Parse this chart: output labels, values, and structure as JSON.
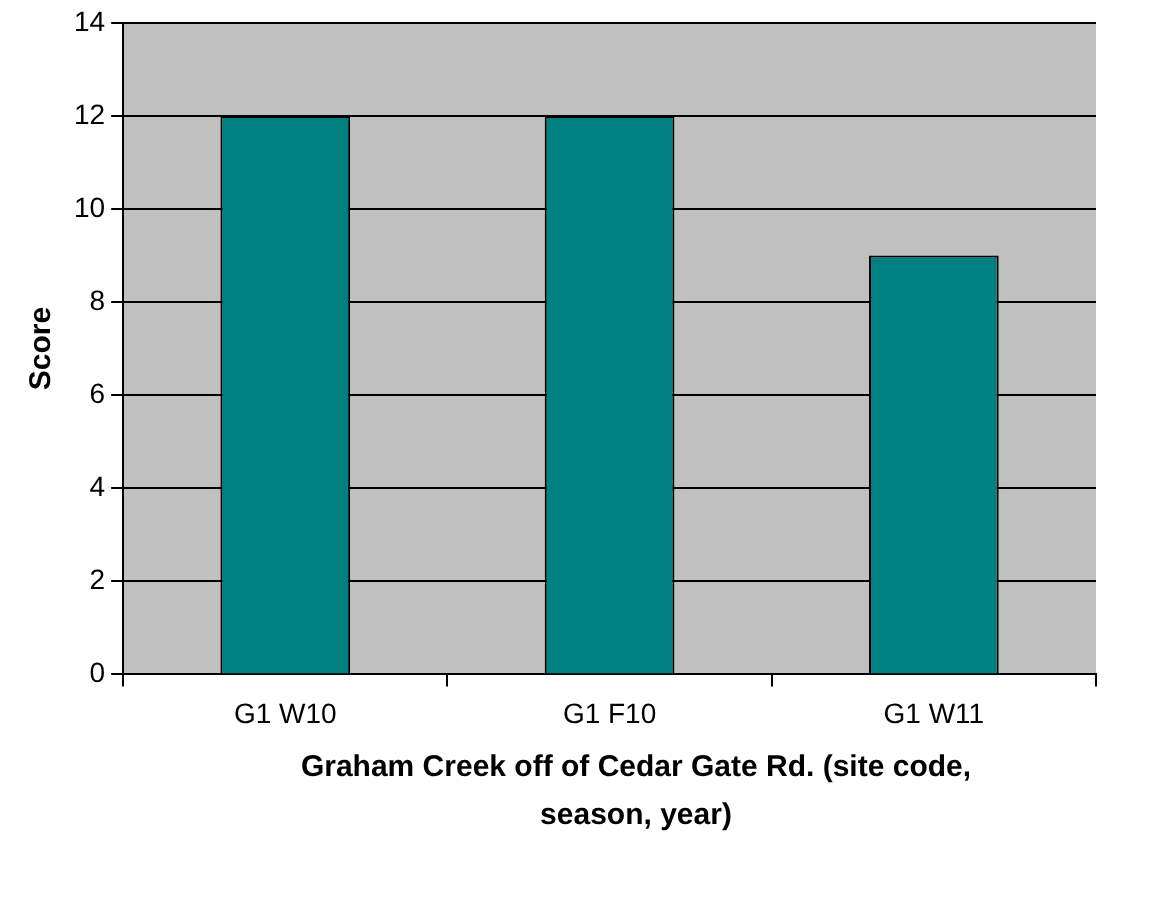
{
  "chart_data": {
    "type": "bar",
    "xlabel": "Graham Creek off of Cedar Gate Rd. (site code, season, year)",
    "ylabel": "Score",
    "categories": [
      "G1 W10",
      "G1 F10",
      "G1 W11"
    ],
    "values": [
      12,
      12,
      9
    ],
    "color": "#008080",
    "ylim": [
      0,
      14
    ],
    "yticks": [
      0,
      2,
      4,
      6,
      8,
      10,
      12,
      14
    ],
    "grid": "y",
    "legend": false
  }
}
